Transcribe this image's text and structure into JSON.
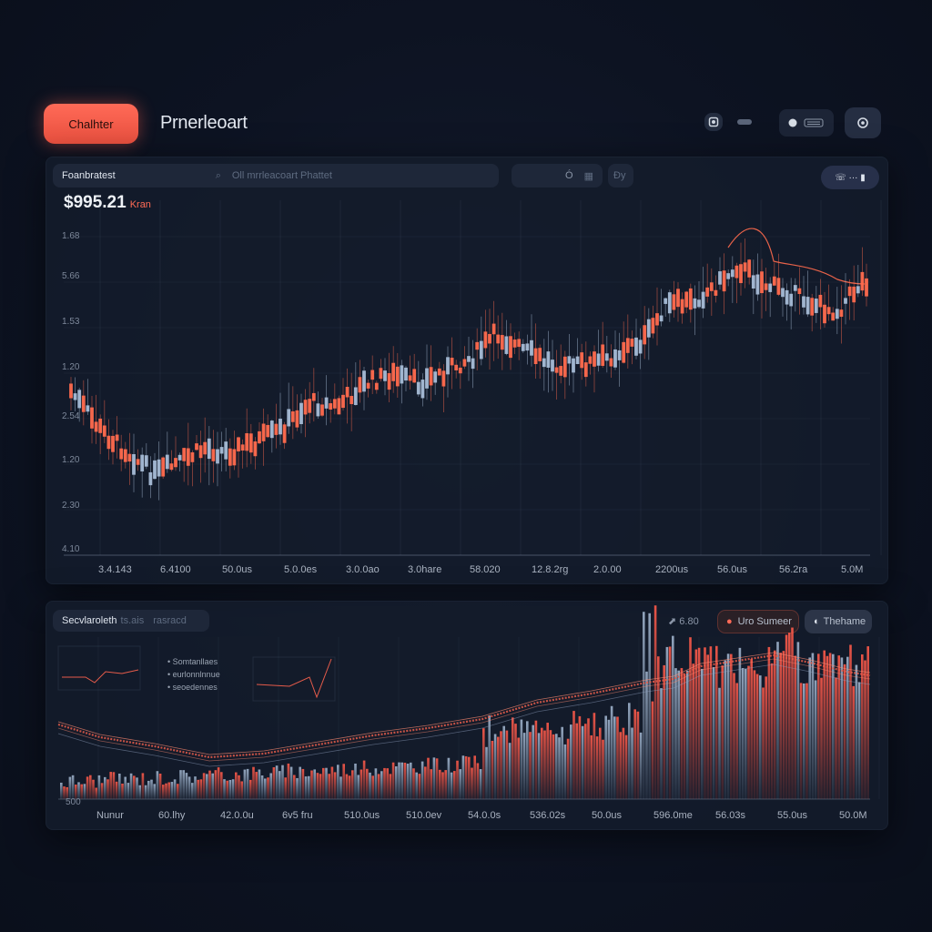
{
  "header": {
    "brand_button": "Chalhter",
    "title": "Prnerleoart",
    "icons": [
      "square-icon",
      "link-icon",
      "bell-icon",
      "keyboard-icon",
      "settings-icon"
    ]
  },
  "main_chart": {
    "tab_label": "Foanbratest",
    "search_placeholder": "Oll mrrleacoart Phattet",
    "control_mid_label": "Ó",
    "control_right_label": "Đy",
    "toggle_label": "",
    "price": "$995.21",
    "price_unit": "Kran",
    "y_labels": [
      "1.68",
      "5.66",
      "1.53",
      "1.20",
      "2.54",
      "1.20",
      "2.30",
      "4.10"
    ],
    "x_labels": [
      "3.4.143",
      "6.4100",
      "50.0us",
      "5.0.0es",
      "3.0.0ao",
      "3.0hare",
      "58.020",
      "12.8.2rg",
      "2.0.00",
      "2200us",
      "56.0us",
      "56.2ra",
      "5.0M"
    ]
  },
  "sub_chart": {
    "tab_label": "Secvlaroleth",
    "tab_sub": "ts.ais",
    "tab_sub2": "rasracd",
    "indicator_value": "6.80",
    "button_label": "Uro Sumeer",
    "button2_label": "Thehame",
    "legend": [
      "Somtanllaes",
      "eurlonnlnnue",
      "seoedennes"
    ],
    "y_label": "500",
    "x_labels": [
      "Nunur",
      "60.lhy",
      "42.0.0u",
      "6v5 fru",
      "510.0us",
      "510.0ev",
      "54.0.0s",
      "536.02s",
      "50.0us",
      "596.0me",
      "56.03s",
      "55.0us",
      "50.0M"
    ]
  },
  "colors": {
    "accent": "#ff6a57",
    "candle_up": "#a7bcd6",
    "candle_down": "#ff6a4d",
    "background": "#0d1322",
    "panel": "#141c2c"
  }
}
